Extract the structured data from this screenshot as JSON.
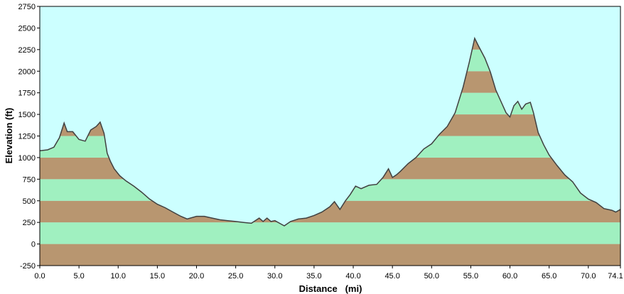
{
  "chart_data": {
    "type": "area",
    "title": "",
    "xlabel": "Distance   (mi)",
    "ylabel": "Elevation (ft)",
    "xlim": [
      0,
      74.1
    ],
    "ylim": [
      -250,
      2750
    ],
    "x_ticks": [
      "0.0",
      "5.0",
      "10.0",
      "15.0",
      "20.0",
      "25.0",
      "30.0",
      "35.0",
      "40.0",
      "45.0",
      "50.0",
      "55.0",
      "60.0",
      "65.0",
      "70.0",
      "74.1"
    ],
    "x_tick_values": [
      0,
      5,
      10,
      15,
      20,
      25,
      30,
      35,
      40,
      45,
      50,
      55,
      60,
      65,
      70,
      74.1
    ],
    "y_ticks": [
      "2750",
      "2500",
      "2250",
      "2000",
      "1750",
      "1500",
      "1250",
      "1000",
      "750",
      "500",
      "250",
      "0",
      "-250"
    ],
    "y_tick_values": [
      2750,
      2500,
      2250,
      2000,
      1750,
      1500,
      1250,
      1000,
      750,
      500,
      250,
      0,
      -250
    ],
    "grid": false,
    "series": [
      {
        "points": [
          [
            0,
            1080
          ],
          [
            1.0,
            1090
          ],
          [
            1.8,
            1120
          ],
          [
            2.5,
            1230
          ],
          [
            3.1,
            1400
          ],
          [
            3.5,
            1300
          ],
          [
            4.2,
            1300
          ],
          [
            5.0,
            1210
          ],
          [
            5.8,
            1190
          ],
          [
            6.5,
            1320
          ],
          [
            7.2,
            1360
          ],
          [
            7.7,
            1410
          ],
          [
            8.2,
            1280
          ],
          [
            8.6,
            1050
          ],
          [
            9.0,
            960
          ],
          [
            9.5,
            870
          ],
          [
            10.2,
            790
          ],
          [
            11.0,
            730
          ],
          [
            12.0,
            670
          ],
          [
            13.0,
            600
          ],
          [
            14.0,
            520
          ],
          [
            15.0,
            460
          ],
          [
            16.0,
            420
          ],
          [
            17.0,
            370
          ],
          [
            18.0,
            320
          ],
          [
            18.8,
            290
          ],
          [
            20.0,
            320
          ],
          [
            21.0,
            320
          ],
          [
            22.0,
            300
          ],
          [
            23.0,
            280
          ],
          [
            24.0,
            270
          ],
          [
            25.0,
            260
          ],
          [
            26.0,
            250
          ],
          [
            27.0,
            240
          ],
          [
            27.5,
            270
          ],
          [
            28.0,
            300
          ],
          [
            28.5,
            260
          ],
          [
            29.0,
            300
          ],
          [
            29.5,
            260
          ],
          [
            30.0,
            270
          ],
          [
            30.6,
            240
          ],
          [
            31.2,
            210
          ],
          [
            32.0,
            260
          ],
          [
            33.0,
            290
          ],
          [
            34.0,
            300
          ],
          [
            35.0,
            330
          ],
          [
            36.0,
            370
          ],
          [
            37.0,
            430
          ],
          [
            37.6,
            490
          ],
          [
            38.3,
            400
          ],
          [
            39.0,
            500
          ],
          [
            39.6,
            570
          ],
          [
            40.3,
            670
          ],
          [
            41.0,
            640
          ],
          [
            42.0,
            680
          ],
          [
            43.0,
            690
          ],
          [
            43.8,
            770
          ],
          [
            44.5,
            870
          ],
          [
            45.0,
            770
          ],
          [
            45.5,
            800
          ],
          [
            46.0,
            840
          ],
          [
            47.0,
            930
          ],
          [
            48.0,
            1000
          ],
          [
            49.0,
            1100
          ],
          [
            50.0,
            1160
          ],
          [
            51.0,
            1270
          ],
          [
            52.0,
            1360
          ],
          [
            53.0,
            1520
          ],
          [
            54.0,
            1810
          ],
          [
            54.8,
            2100
          ],
          [
            55.5,
            2380
          ],
          [
            56.0,
            2290
          ],
          [
            56.8,
            2150
          ],
          [
            57.5,
            1990
          ],
          [
            58.2,
            1780
          ],
          [
            59.0,
            1620
          ],
          [
            59.5,
            1520
          ],
          [
            60.0,
            1470
          ],
          [
            60.5,
            1600
          ],
          [
            61.0,
            1650
          ],
          [
            61.5,
            1560
          ],
          [
            62.0,
            1620
          ],
          [
            62.6,
            1640
          ],
          [
            63.0,
            1520
          ],
          [
            63.6,
            1290
          ],
          [
            64.3,
            1150
          ],
          [
            65.0,
            1030
          ],
          [
            66.0,
            910
          ],
          [
            67.0,
            800
          ],
          [
            68.0,
            720
          ],
          [
            69.0,
            590
          ],
          [
            70.0,
            520
          ],
          [
            71.0,
            480
          ],
          [
            72.0,
            410
          ],
          [
            73.0,
            390
          ],
          [
            73.5,
            370
          ],
          [
            74.1,
            400
          ]
        ]
      }
    ],
    "colors": {
      "background": "#ffffff",
      "plot_background": "#ccffff",
      "band_green": "#a0f0c0",
      "band_brown": "#b89670",
      "profile_line": "#404040",
      "axis": "#000000"
    }
  }
}
